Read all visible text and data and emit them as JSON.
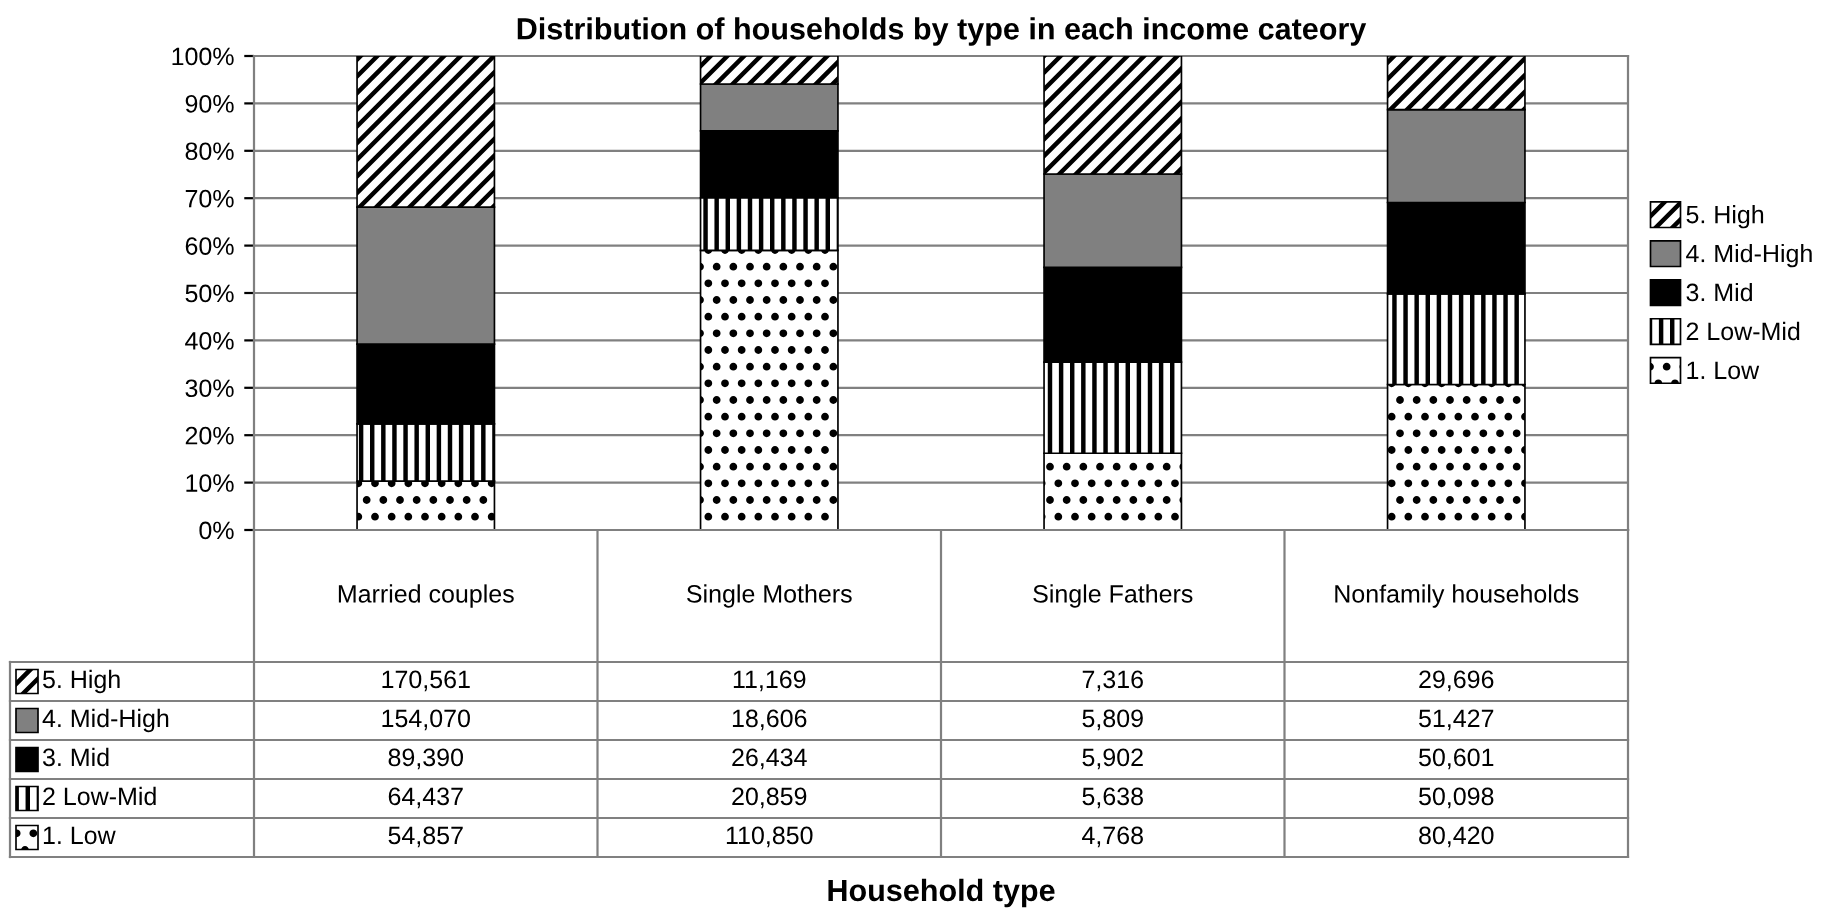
{
  "chart_data": {
    "type": "bar",
    "stacked": true,
    "title": "Distribution of households by type in each income cateory",
    "categories": [
      "Married couples",
      "Single Mothers",
      "Single Fathers",
      "Nonfamily households"
    ],
    "series": [
      {
        "name": "1. Low",
        "color": "#000000",
        "values": [
          10.3,
          59.0,
          16.2,
          30.7
        ]
      },
      {
        "name": "2 Low-Mid",
        "color": "#000000",
        "values": [
          12.1,
          11.1,
          19.2,
          19.1
        ]
      },
      {
        "name": "3. Mid",
        "color": "#000000",
        "values": [
          16.8,
          14.1,
          20.0,
          19.3
        ]
      },
      {
        "name": "4. Mid-High",
        "color": "#808080",
        "values": [
          28.9,
          9.9,
          19.7,
          19.6
        ]
      },
      {
        "name": "5. High",
        "color": "#000000",
        "values": [
          31.9,
          5.9,
          24.9,
          11.3
        ]
      }
    ],
    "annotations": [
      "170,561",
      "11,169",
      "7,316",
      "29,696",
      "154,070",
      "18,606",
      "5,809",
      "51,427",
      "89,390",
      "26,434",
      "5,902",
      "50,601",
      "64,437",
      "20,859",
      "5,638",
      "50,098",
      "54,857",
      "110,850",
      "4,768",
      "80,420",
      "Household type"
    ],
    "ylim": [
      0,
      100
    ],
    "yticks": [
      {
        "value": 0,
        "label": "0%"
      },
      {
        "value": 10,
        "label": "10%"
      },
      {
        "value": 20,
        "label": "20%"
      },
      {
        "value": 30,
        "label": "30%"
      },
      {
        "value": 40,
        "label": "40%"
      },
      {
        "value": 50,
        "label": "50%"
      },
      {
        "value": 60,
        "label": "60%"
      },
      {
        "value": 70,
        "label": "70%"
      },
      {
        "value": 80,
        "label": "80%"
      },
      {
        "value": 90,
        "label": "90%"
      },
      {
        "value": 100,
        "label": "100%"
      }
    ],
    "grid": "y",
    "legend": "right"
  }
}
